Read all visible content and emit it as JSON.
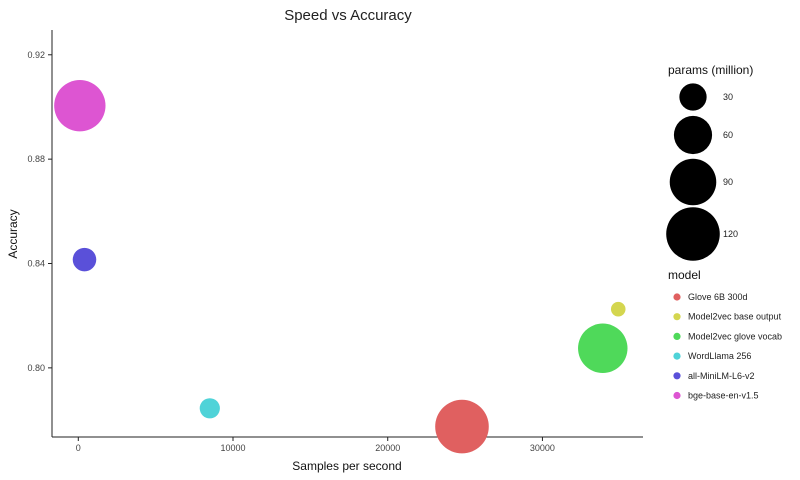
{
  "chart_data": {
    "type": "scatter",
    "title": "Speed vs Accuracy",
    "xlabel": "Samples per second",
    "ylabel": "Accuracy",
    "xlim": [
      -1700,
      36500
    ],
    "ylim": [
      0.7735,
      0.9295
    ],
    "xticks": [
      {
        "value": 0,
        "label": "0"
      },
      {
        "value": 10000,
        "label": "10000"
      },
      {
        "value": 20000,
        "label": "20000"
      },
      {
        "value": 30000,
        "label": "30000"
      }
    ],
    "yticks": [
      {
        "value": 0.8,
        "label": "0.80"
      },
      {
        "value": 0.84,
        "label": "0.84"
      },
      {
        "value": 0.88,
        "label": "0.88"
      },
      {
        "value": 0.92,
        "label": "0.92"
      }
    ],
    "size_legend": {
      "title": "params (million)",
      "entries": [
        {
          "label": "30",
          "value": 30
        },
        {
          "label": "60",
          "value": 60
        },
        {
          "label": "90",
          "value": 90
        },
        {
          "label": "120",
          "value": 120
        }
      ]
    },
    "color_legend": {
      "title": "model"
    },
    "series": [
      {
        "name": "Glove 6B 300d",
        "color": "#e06060",
        "points": [
          {
            "x": 24800,
            "y": 0.7775,
            "params": 120
          }
        ]
      },
      {
        "name": "Model2vec base output",
        "color": "#d4d64f",
        "points": [
          {
            "x": 34900,
            "y": 0.8225,
            "params": 8
          }
        ]
      },
      {
        "name": "Model2vec glove vocab",
        "color": "#4fd95a",
        "points": [
          {
            "x": 33900,
            "y": 0.8075,
            "params": 102
          }
        ]
      },
      {
        "name": "WordLlama 256",
        "color": "#4fd3d8",
        "points": [
          {
            "x": 8500,
            "y": 0.7845,
            "params": 16
          }
        ]
      },
      {
        "name": "all-MiniLM-L6-v2",
        "color": "#5a50d9",
        "points": [
          {
            "x": 400,
            "y": 0.8415,
            "params": 22
          }
        ]
      },
      {
        "name": "bge-base-en-v1.5",
        "color": "#dd55d2",
        "points": [
          {
            "x": 100,
            "y": 0.9005,
            "params": 110
          }
        ]
      }
    ],
    "legend_position": "right",
    "grid": false
  }
}
